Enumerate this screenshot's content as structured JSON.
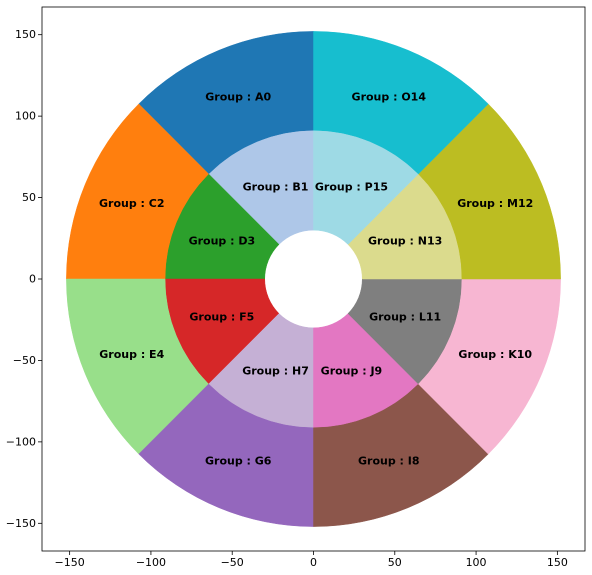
{
  "chart_data": {
    "type": "pie",
    "title": "",
    "xlabel": "",
    "ylabel": "",
    "xlim": [
      -167,
      167
    ],
    "ylim": [
      -167,
      167
    ],
    "grid": false,
    "xticks": [
      -150,
      -100,
      -50,
      0,
      50,
      100,
      150
    ],
    "yticks": [
      -150,
      -100,
      -50,
      0,
      50,
      100,
      150
    ],
    "xtick_labels": [
      "−150",
      "−100",
      "−50",
      "0",
      "50",
      "100",
      "150"
    ],
    "ytick_labels": [
      "−150",
      "−100",
      "−50",
      "0",
      "50",
      "100",
      "150"
    ],
    "rings": [
      {
        "name": "outer",
        "inner_radius": 90,
        "outer_radius": 152,
        "label_radius": 121,
        "start_angle_deg": 90,
        "direction": "counterclockwise",
        "slices": [
          {
            "label": "Group : A0",
            "value": 1,
            "color": "#1f77b4"
          },
          {
            "label": "Group : C2",
            "value": 1,
            "color": "#ff7f0e"
          },
          {
            "label": "Group : E4",
            "value": 1,
            "color": "#98df8a"
          },
          {
            "label": "Group : G6",
            "value": 1,
            "color": "#9467bd"
          },
          {
            "label": "Group : I8",
            "value": 1,
            "color": "#8c564b"
          },
          {
            "label": "Group : K10",
            "value": 1,
            "color": "#f7b6d2"
          },
          {
            "label": "Group : M12",
            "value": 1,
            "color": "#bcbd22"
          },
          {
            "label": "Group : O14",
            "value": 1,
            "color": "#17becf"
          }
        ]
      },
      {
        "name": "inner",
        "inner_radius": 30,
        "outer_radius": 91,
        "label_radius": 61,
        "start_angle_deg": 90,
        "direction": "counterclockwise",
        "slices": [
          {
            "label": "Group : B1",
            "value": 1,
            "color": "#aec7e8"
          },
          {
            "label": "Group : D3",
            "value": 1,
            "color": "#2ca02c"
          },
          {
            "label": "Group : F5",
            "value": 1,
            "color": "#d62728"
          },
          {
            "label": "Group : H7",
            "value": 1,
            "color": "#c5b0d5"
          },
          {
            "label": "Group : J9",
            "value": 1,
            "color": "#e377c2"
          },
          {
            "label": "Group : L11",
            "value": 1,
            "color": "#7f7f7f"
          },
          {
            "label": "Group : N13",
            "value": 1,
            "color": "#dbdb8d"
          },
          {
            "label": "Group : P15",
            "value": 1,
            "color": "#9edae5"
          }
        ]
      }
    ]
  }
}
